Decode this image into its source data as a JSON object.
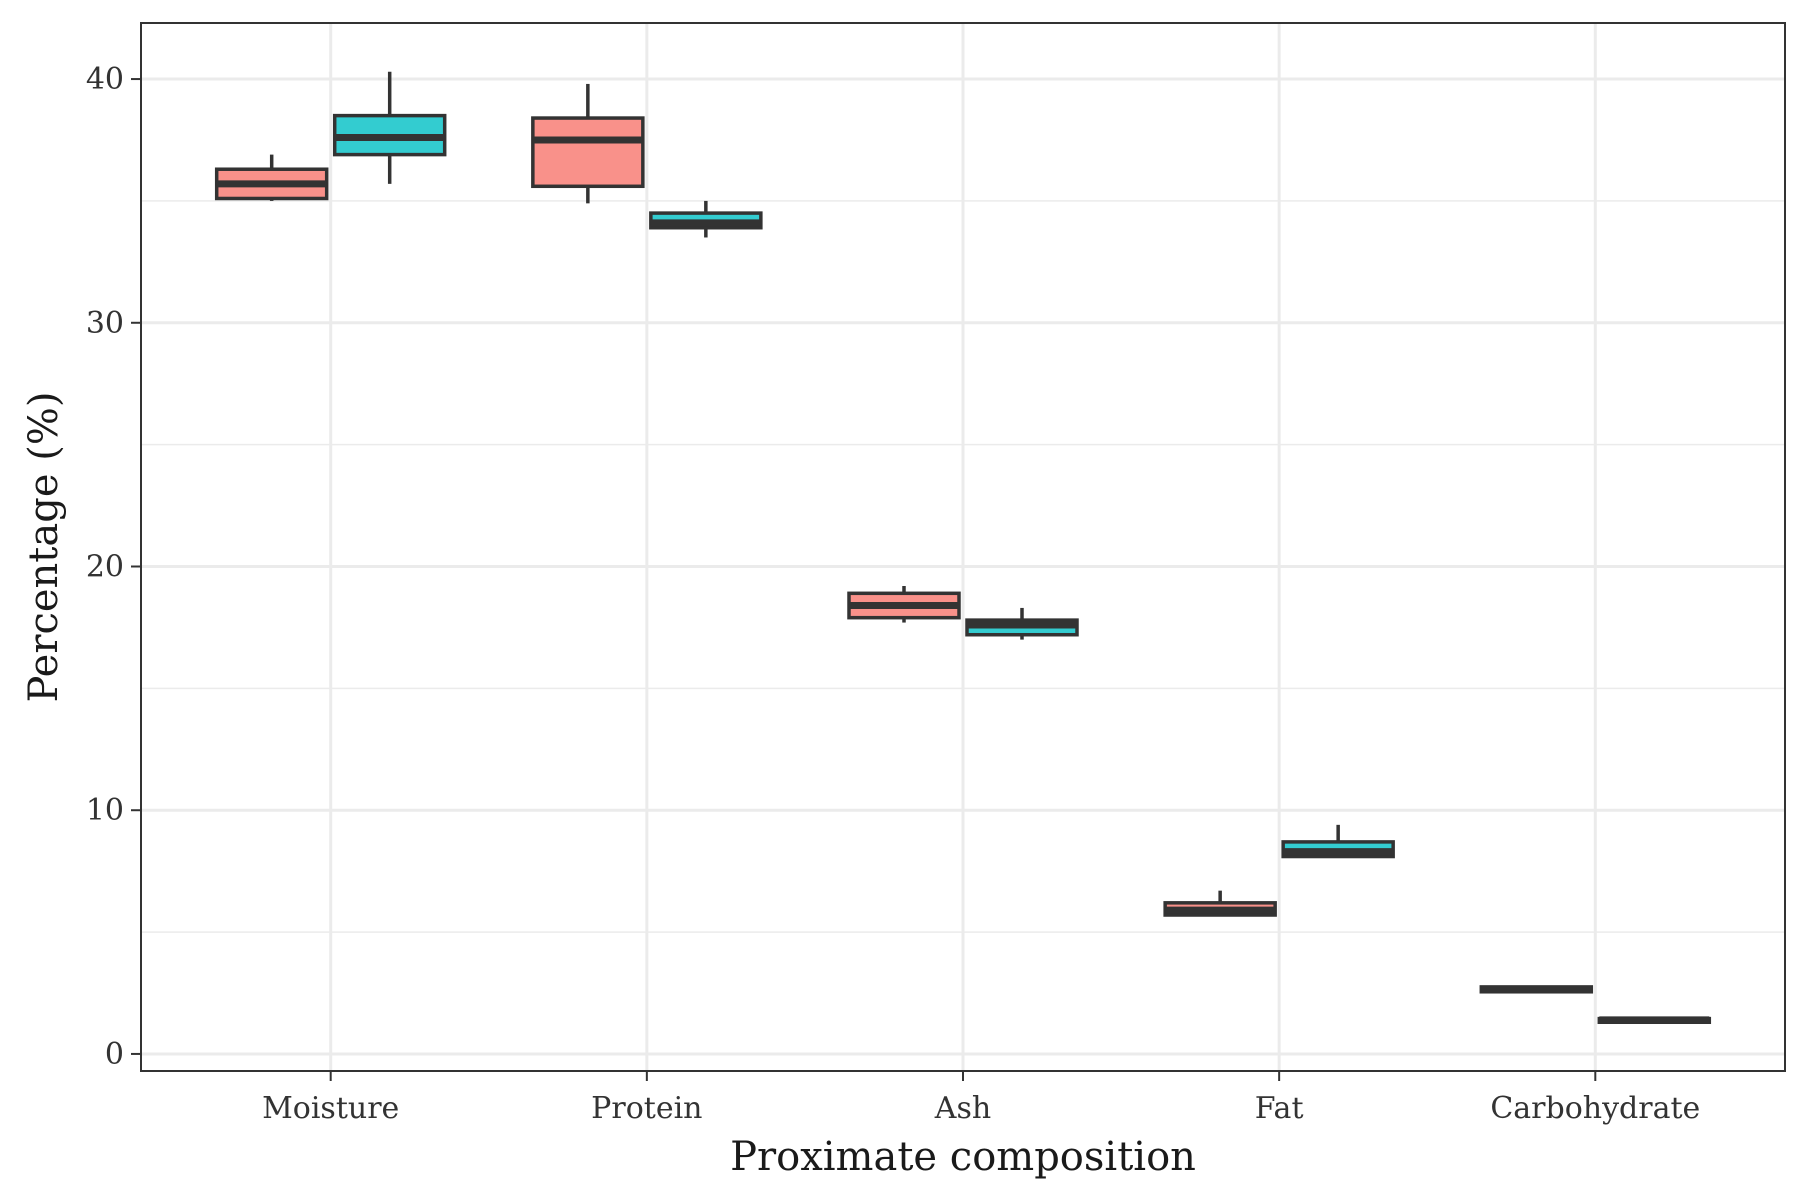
{
  "chart_data": {
    "type": "box",
    "title": "",
    "xlabel": "Proximate composition",
    "ylabel": "Percentage (%)",
    "ylim": [
      -0.7,
      42.3
    ],
    "yticks": [
      0,
      10,
      20,
      30,
      40
    ],
    "grid": true,
    "legend": "none",
    "categories": [
      "Moisture",
      "Protein",
      "Ash",
      "Fat",
      "Carbohydrate"
    ],
    "series": [
      {
        "color": "#F8766D",
        "boxes": [
          {
            "min": 35.0,
            "q1": 35.1,
            "median": 35.7,
            "q3": 36.3,
            "max": 36.9
          },
          {
            "min": 34.9,
            "q1": 35.6,
            "median": 37.5,
            "q3": 38.4,
            "max": 39.8
          },
          {
            "min": 17.7,
            "q1": 17.9,
            "median": 18.4,
            "q3": 18.9,
            "max": 19.2
          },
          {
            "min": 5.7,
            "q1": 5.7,
            "median": 5.9,
            "q3": 6.2,
            "max": 6.7
          },
          {
            "min": 2.5,
            "q1": 2.55,
            "median": 2.65,
            "q3": 2.75,
            "max": 2.75
          }
        ]
      },
      {
        "color": "#00BFC4",
        "boxes": [
          {
            "min": 35.7,
            "q1": 36.9,
            "median": 37.6,
            "q3": 38.5,
            "max": 40.3
          },
          {
            "min": 33.5,
            "q1": 33.9,
            "median": 34.1,
            "q3": 34.5,
            "max": 35.0
          },
          {
            "min": 17.0,
            "q1": 17.2,
            "median": 17.6,
            "q3": 17.8,
            "max": 18.3
          },
          {
            "min": 8.1,
            "q1": 8.1,
            "median": 8.3,
            "q3": 8.7,
            "max": 9.4
          },
          {
            "min": 1.3,
            "q1": 1.3,
            "median": 1.4,
            "q3": 1.45,
            "max": 1.45
          }
        ]
      }
    ]
  }
}
